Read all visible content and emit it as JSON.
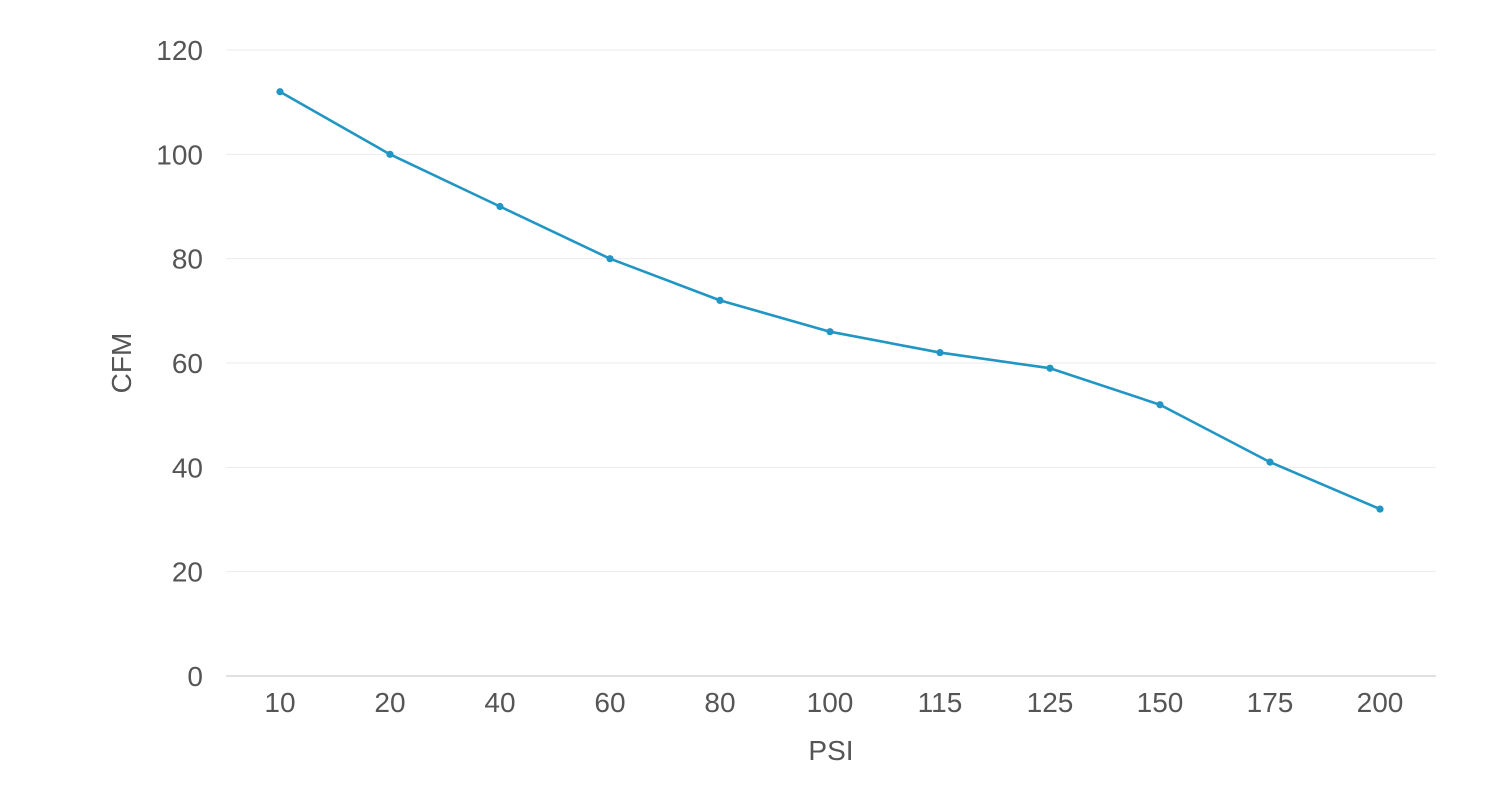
{
  "chart_data": {
    "type": "line",
    "title": "",
    "xlabel": "PSI",
    "ylabel": "CFM",
    "categories": [
      "10",
      "20",
      "40",
      "60",
      "80",
      "100",
      "115",
      "125",
      "150",
      "175",
      "200"
    ],
    "series": [
      {
        "values": [
          112,
          100,
          90,
          80,
          72,
          66,
          62,
          59,
          52,
          41,
          32
        ],
        "color": "#2196c4"
      }
    ],
    "ylim": [
      0,
      120
    ],
    "yticks": [
      0,
      20,
      40,
      60,
      80,
      100,
      120
    ],
    "grid": true,
    "legend": "none"
  }
}
